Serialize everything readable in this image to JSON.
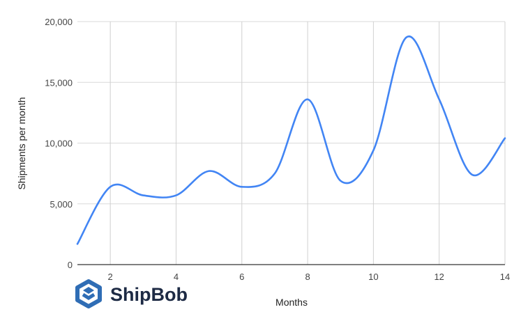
{
  "chart_data": {
    "type": "line",
    "title": "",
    "xlabel": "Months",
    "ylabel": "Shipments per month",
    "x": [
      1,
      2,
      3,
      4,
      5,
      6,
      7,
      8,
      9,
      10,
      11,
      12,
      13,
      14
    ],
    "series": [
      {
        "name": "Shipments per month",
        "color": "#4285f4",
        "values": [
          1700,
          6400,
          5700,
          5700,
          7700,
          6400,
          7500,
          13600,
          6900,
          9400,
          18700,
          13600,
          7400,
          10400
        ]
      }
    ],
    "xlim": [
      1,
      14
    ],
    "ylim": [
      0,
      20000
    ],
    "xticks": [
      2,
      4,
      6,
      8,
      10,
      12,
      14
    ],
    "xtick_labels": [
      "2",
      "4",
      "6",
      "8",
      "10",
      "12",
      "14"
    ],
    "yticks": [
      0,
      5000,
      10000,
      15000,
      20000
    ],
    "ytick_labels": [
      "0",
      "5,000",
      "10,000",
      "15,000",
      "20,000"
    ],
    "grid": true,
    "legend": "none"
  },
  "logo": {
    "text": "ShipBob",
    "color": "#2f6db5"
  }
}
